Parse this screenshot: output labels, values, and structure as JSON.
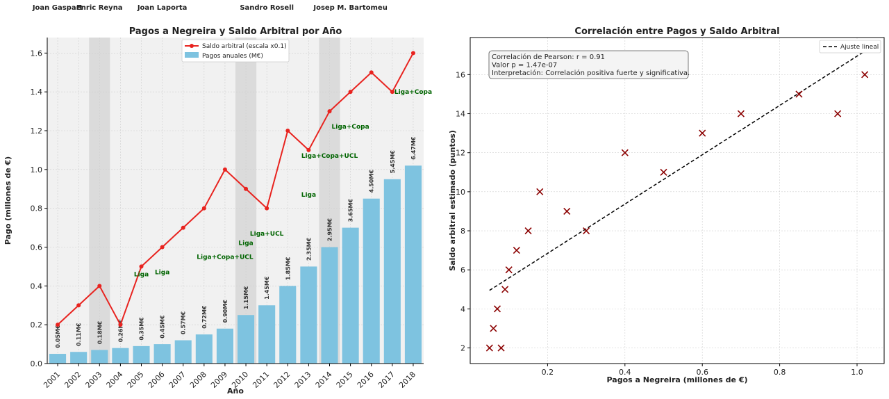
{
  "chart_data": [
    {
      "type": "bar",
      "title": "Pagos a Negreira y Saldo Arbitral por Año",
      "xlabel": "Año",
      "ylabel": "Pago (millones de €)",
      "ylim": [
        0,
        1.68
      ],
      "yticks": [
        "0.0",
        "0.2",
        "0.4",
        "0.6",
        "0.8",
        "1.0",
        "1.2",
        "1.4",
        "1.6"
      ],
      "categories": [
        "2001",
        "2002",
        "2003",
        "2004",
        "2005",
        "2006",
        "2007",
        "2008",
        "2009",
        "2010",
        "2011",
        "2012",
        "2013",
        "2014",
        "2015",
        "2016",
        "2017",
        "2018"
      ],
      "grid": true,
      "legend_position": "top-center",
      "series": [
        {
          "name": "Pagos anuales (M€)",
          "type": "bar",
          "color": "#7ec3e0",
          "values": [
            0.05,
            0.06,
            0.07,
            0.08,
            0.09,
            0.1,
            0.12,
            0.15,
            0.18,
            0.25,
            0.3,
            0.4,
            0.5,
            0.6,
            0.7,
            0.85,
            0.95,
            1.02
          ],
          "data_labels": [
            "0.05M€",
            "0.11M€",
            "0.18M€",
            "0.26M€",
            "0.35M€",
            "0.45M€",
            "0.57M€",
            "0.72M€",
            "0.90M€",
            "1.15M€",
            "1.45M€",
            "1.85M€",
            "2.35M€",
            "2.95M€",
            "3.65M€",
            "4.50M€",
            "5.45M€",
            "6.47M€"
          ]
        },
        {
          "name": "Saldo arbitral (escala x0.1)",
          "type": "line",
          "color": "#e8231f",
          "values": [
            0.2,
            0.3,
            0.4,
            0.2,
            0.5,
            0.6,
            0.7,
            0.8,
            1.0,
            0.9,
            0.8,
            1.2,
            1.1,
            1.3,
            1.4,
            1.5,
            1.4,
            1.6
          ]
        }
      ],
      "presidents": [
        {
          "name": "Joan Gaspart",
          "year": "2001"
        },
        {
          "name": "Enric Reyna",
          "year": "2003"
        },
        {
          "name": "Joan Laporta",
          "year": "2006"
        },
        {
          "name": "Sandro Rosell",
          "year": "2011"
        },
        {
          "name": "Josep M. Bartomeu",
          "year": "2015"
        }
      ],
      "shaded_years": [
        "2003",
        "2010",
        "2014"
      ],
      "annotations": [
        {
          "text": "Liga",
          "year": "2005",
          "y": 0.45
        },
        {
          "text": "Liga",
          "year": "2006",
          "y": 0.46
        },
        {
          "text": "Liga+Copa+UCL",
          "year": "2009",
          "y": 0.54
        },
        {
          "text": "Liga",
          "year": "2010",
          "y": 0.61
        },
        {
          "text": "Liga+UCL",
          "year": "2011",
          "y": 0.66
        },
        {
          "text": "Liga",
          "year": "2013",
          "y": 0.86
        },
        {
          "text": "Liga+Copa+UCL",
          "year": "2014",
          "y": 1.06
        },
        {
          "text": "Liga+Copa",
          "year": "2015",
          "y": 1.21
        },
        {
          "text": "Liga+Copa",
          "year": "2018",
          "y": 1.39
        }
      ]
    },
    {
      "type": "scatter",
      "title": "Correlación entre Pagos y Saldo Arbitral",
      "xlabel": "Pagos a Negreira (millones de €)",
      "ylabel": "Saldo arbitral estimado (puntos)",
      "xlim": [
        0.0,
        1.07
      ],
      "ylim": [
        1.2,
        17.9
      ],
      "xticks": [
        "0.2",
        "0.4",
        "0.6",
        "0.8",
        "1.0"
      ],
      "yticks": [
        "2",
        "4",
        "6",
        "8",
        "10",
        "12",
        "14",
        "16"
      ],
      "grid": true,
      "legend_position": "top-right",
      "points": {
        "color": "#8b0000",
        "x": [
          0.05,
          0.06,
          0.07,
          0.08,
          0.09,
          0.1,
          0.12,
          0.15,
          0.18,
          0.25,
          0.3,
          0.4,
          0.5,
          0.6,
          0.7,
          0.85,
          0.95,
          1.02
        ],
        "y": [
          2,
          3,
          4,
          2,
          5,
          6,
          7,
          8,
          10,
          9,
          8,
          12,
          11,
          13,
          14,
          15,
          14,
          16
        ]
      },
      "fit_line": {
        "name": "Ajuste lineal",
        "color": "#000000",
        "x": [
          0.05,
          1.02
        ],
        "y": [
          4.95,
          17.2
        ]
      },
      "info_box": [
        "Correlación de Pearson: r = 0.91",
        "Valor p = 1.47e-07",
        "Interpretación: Correlación positiva fuerte y significativa."
      ]
    }
  ]
}
